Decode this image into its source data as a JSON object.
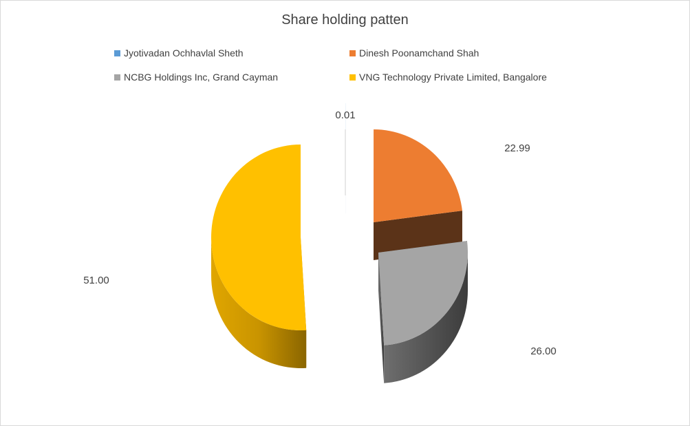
{
  "chart_data": {
    "type": "pie",
    "title": "Share holding patten",
    "categories": [
      "Jyotivadan Ochhavlal Sheth",
      "Dinesh Poonamchand Shah",
      "NCBG Holdings Inc, Grand Cayman",
      "VNG Technology Private Limited, Bangalore"
    ],
    "values": [
      0.01,
      22.99,
      26.0,
      51.0
    ],
    "data_labels": [
      "0.01",
      "22.99",
      "26.00",
      "51.00"
    ],
    "colors": [
      "#5B9BD5",
      "#ED7D31",
      "#A5A5A5",
      "#FFC000"
    ],
    "legend_position": "top",
    "style": "3d-exploded"
  }
}
